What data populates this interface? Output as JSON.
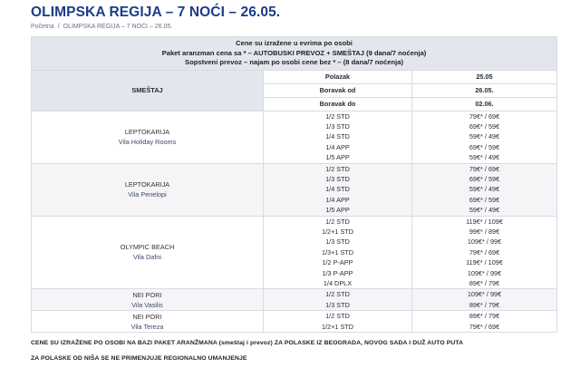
{
  "page": {
    "title": "OLIMPSKA REGIJA – 7 NOĆI – 26.05."
  },
  "breadcrumb": {
    "home": "Početna",
    "separator": "/",
    "current": "OLIMPSKA REGIJA – 7 NOĆI – 26.05."
  },
  "table": {
    "header_lines": [
      "Cene su izražene u evrima po osobi",
      "Paket aranzman cena sa * – AUTOBUSKI PREVOZ + SMEŠTAJ (9 dana/7 noćenja)",
      "Sopstveni prevoz – najam po osobi cene bez * – (8 dana/7 noćenja)"
    ],
    "smestaj_label": "SMEŠTAJ",
    "polazak_label": "Polazak",
    "polazak_value": "25.05",
    "boravak_od_label": "Boravak od",
    "boravak_od_value": "26.05.",
    "boravak_do_label": "Boravak do",
    "boravak_do_value": "02.06.",
    "hotels": [
      {
        "city": "LEPTOKARIJA",
        "name": "Vila Holiday Rooms",
        "rooms": [
          "1/2 STD",
          "1/3 STD",
          "1/4 STD",
          "1/4 APP",
          "1/5 APP"
        ],
        "prices": [
          "79€* / 69€",
          "69€* / 59€",
          "59€* / 49€",
          "69€* / 59€",
          "59€* / 49€"
        ]
      },
      {
        "city": "LEPTOKARIJA",
        "name": "Vila Penelopi",
        "rooms": [
          "1/2 STD",
          "1/3 STD",
          "1/4 STD",
          "1/4 APP",
          "1/5 APP"
        ],
        "prices": [
          "79€* / 69€",
          "69€* / 59€",
          "59€* / 49€",
          "69€* / 59€",
          "59€* / 49€"
        ]
      },
      {
        "city": "OLYMPIC BEACH",
        "name": "Vila Dafni",
        "rooms": [
          "1/2 STD",
          "1/2+1 STD",
          "1/3 STD",
          "1/3+1 STD",
          "1/2 P-APP",
          "1/3 P-APP",
          "1/4 DPLX"
        ],
        "prices": [
          "119€* / 109€",
          "99€* / 89€",
          "109€* / 99€",
          "79€* / 69€",
          "119€* / 109€",
          "109€* / 99€",
          "89€* / 79€"
        ]
      },
      {
        "city": "NEI PORI",
        "name": "Vila Vasilis",
        "rooms": [
          "1/2 STD",
          "1/3 STD"
        ],
        "prices": [
          "109€* / 99€",
          "89€* / 79€"
        ]
      },
      {
        "city": "NEI PORI",
        "name": "Vila Tereza",
        "rooms": [
          "1/2 STD",
          "1/2+1 STD"
        ],
        "prices": [
          "89€* / 79€",
          "79€* / 69€"
        ]
      }
    ]
  },
  "notes": {
    "line1": "CENE SU IZRAŽENE PO OSOBI NA BAZI PAKET ARANŽMANA (smeštaj i prevoz) ZA POLASKE IZ BEOGRADA, NOVOG SADA I DUŽ AUTO PUTA",
    "line2": "ZA POLASKE OD NIŠA SE NE PRIMENJUJE REGIONALNO UMANJENJE"
  }
}
